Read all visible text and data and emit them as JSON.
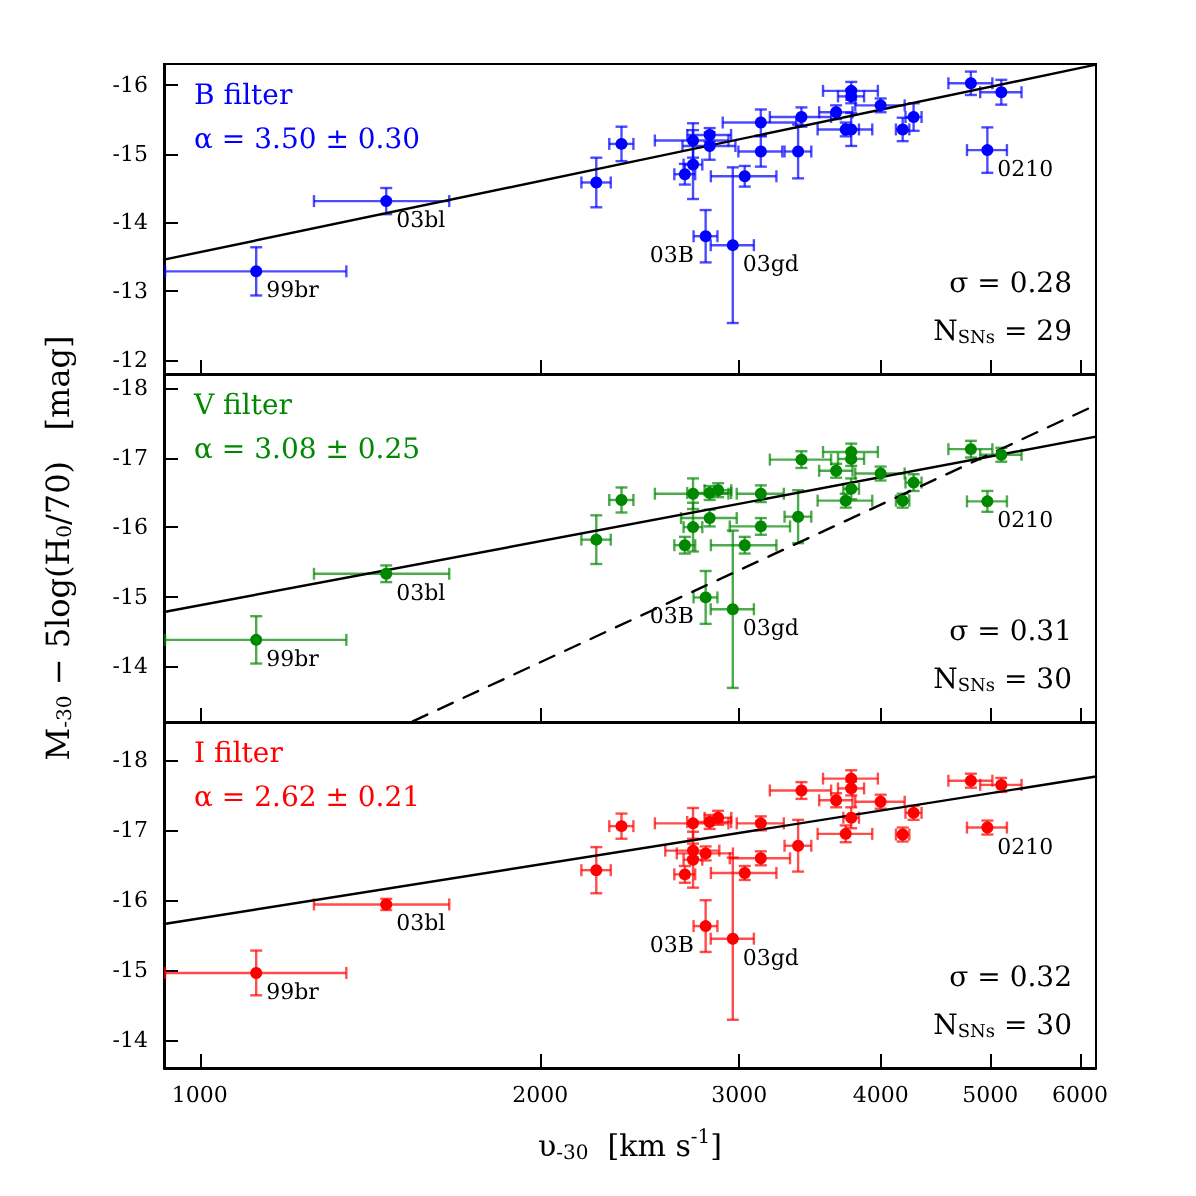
{
  "chart_data": [
    {
      "type": "scatter",
      "title": "B filter",
      "subtitle": "α = 3.50 ± 0.30",
      "log": "x",
      "tick_labels": "y",
      "xlim": [
        930,
        6200
      ],
      "ylim": [
        -11.8,
        -16.3
      ],
      "xticks": [
        1000,
        2000,
        3000,
        4000,
        5000,
        6000
      ],
      "yticks": [
        -16,
        -15,
        -14,
        -13,
        -12
      ],
      "annotations": [
        "σ = 0.28",
        "N$_{SNs}$ = 29",
        {
          "text": "99br",
          "x": 1122,
          "y": -13.29
        },
        {
          "text": "03bl",
          "x": 1462,
          "y": -14.31
        },
        {
          "text": "03B",
          "x": 2801,
          "y": -13.8
        },
        {
          "text": "03gd",
          "x": 2960,
          "y": -13.67
        },
        {
          "text": "0210",
          "x": 4970,
          "y": -15.05
        }
      ],
      "series": [
        {
          "color": "#0000ff",
          "marker": "circle",
          "x": [
            1122,
            1462,
            2242,
            2360,
            2685,
            2730,
            2730,
            2824,
            2824,
            2801,
            2960,
            3033,
            3134,
            3134,
            3381,
            3404,
            3653,
            3767,
            3767,
            3725,
            3767,
            3999,
            4183,
            4277,
            4806,
            5113,
            4970
          ],
          "values": [
            -13.29,
            -14.31,
            -14.58,
            -15.14,
            -14.7,
            -14.84,
            -15.19,
            -15.11,
            -15.27,
            -13.8,
            -13.67,
            -14.67,
            -15.45,
            -15.03,
            -15.03,
            -15.53,
            -15.6,
            -15.91,
            -15.83,
            -15.35,
            -15.35,
            -15.7,
            -15.35,
            -15.53,
            -16.02,
            -15.89,
            -15.05
          ],
          "errors": [
            0.35,
            0.19,
            0.36,
            0.25,
            0.15,
            0.5,
            0.25,
            0.2,
            0.1,
            0.38,
            1.13,
            0.15,
            0.19,
            0.22,
            0.39,
            0.14,
            0.1,
            0.13,
            0.1,
            0.1,
            0.24,
            0.1,
            0.17,
            0.2,
            0.17,
            0.18,
            0.33
          ],
          "xerrors": [
            [
              932,
              1348
            ],
            200,
            67,
            58,
            57,
            52,
            204,
            152,
            126,
            68,
            130,
            202,
            234,
            140,
            92,
            212,
            124,
            210,
            100,
            207,
            60,
            201,
            57,
            70,
            215,
            215,
            202
          ]
        },
        {
          "type": "line",
          "color": "#000000",
          "x": [
            930,
            6200
          ],
          "values": [
            -13.46,
            -16.29
          ]
        }
      ]
    },
    {
      "type": "scatter",
      "title": "V filter",
      "subtitle": "α = 3.08 ± 0.25",
      "ylabel": "M$_{-30}$ − 5log(H$_{0}$/70)   [mag]",
      "log": "x",
      "tick_labels": "y",
      "xlim": [
        930,
        6200
      ],
      "ylim": [
        -13.2,
        -18.2
      ],
      "xticks": [
        1000,
        2000,
        3000,
        4000,
        5000,
        6000
      ],
      "yticks": [
        -18,
        -17,
        -16,
        -15,
        -14
      ],
      "annotations": [
        "σ = 0.31",
        "N$_{SNs}$ = 30",
        {
          "text": "99br",
          "x": 1122,
          "y": -14.38
        },
        {
          "text": "03bl",
          "x": 1462,
          "y": -15.33
        },
        {
          "text": "03B",
          "x": 2801,
          "y": -14.99
        },
        {
          "text": "03gd",
          "x": 2960,
          "y": -14.82
        },
        {
          "text": "0210",
          "x": 4970,
          "y": -16.37
        }
      ],
      "series": [
        {
          "color": "#008800",
          "marker": "circle",
          "x": [
            1122,
            1462,
            2242,
            2360,
            2685,
            2730,
            2730,
            2824,
            2873,
            2824,
            2801,
            2960,
            3033,
            3134,
            3134,
            3381,
            3404,
            3653,
            3767,
            3767,
            3725,
            3767,
            3999,
            4183,
            4277,
            4806,
            5113,
            4970
          ],
          "values": [
            -14.38,
            -15.33,
            -15.82,
            -16.39,
            -15.74,
            -16.0,
            -16.48,
            -16.49,
            -16.53,
            -16.13,
            -14.99,
            -14.82,
            -15.74,
            -16.48,
            -16.01,
            -16.15,
            -16.97,
            -16.81,
            -17.08,
            -16.98,
            -16.38,
            -16.55,
            -16.77,
            -16.38,
            -16.64,
            -17.12,
            -17.04,
            -16.37
          ],
          "errors": [
            0.34,
            0.12,
            0.35,
            0.18,
            0.12,
            0.35,
            0.22,
            0.1,
            0.1,
            0.12,
            0.38,
            1.13,
            0.12,
            0.12,
            0.12,
            0.38,
            0.12,
            0.1,
            0.12,
            0.1,
            0.1,
            0.15,
            0.1,
            0.1,
            0.12,
            0.12,
            0.1,
            0.15
          ],
          "xerrors": [
            [
              932,
              1348
            ],
            200,
            67,
            58,
            57,
            52,
            204,
            126,
            78,
            160,
            68,
            130,
            202,
            150,
            192,
            92,
            212,
            124,
            210,
            100,
            207,
            60,
            201,
            57,
            70,
            215,
            215,
            202
          ]
        },
        {
          "type": "line",
          "color": "#000000",
          "x": [
            930,
            6200
          ],
          "values": [
            -14.78,
            -17.3
          ]
        },
        {
          "type": "line",
          "color": "#000000",
          "line_style": "dashed",
          "x": [
            1543,
            6116
          ],
          "values": [
            -13.21,
            -17.71
          ]
        }
      ]
    },
    {
      "type": "scatter",
      "title": "I filter",
      "subtitle": "α = 2.62 ± 0.21",
      "xlabel": "υ$_{-30}$  [km s$^{-1}$]",
      "log": "x",
      "xlim": [
        930,
        6200
      ],
      "ylim": [
        -13.6,
        -18.55
      ],
      "xticks": [
        1000,
        2000,
        3000,
        4000,
        5000,
        6000
      ],
      "yticks": [
        -18,
        -17,
        -16,
        -15,
        -14
      ],
      "annotations": [
        "σ = 0.32",
        "N$_{SNs}$ = 30",
        {
          "text": "99br",
          "x": 1122,
          "y": -14.96
        },
        {
          "text": "03bl",
          "x": 1462,
          "y": -15.94
        },
        {
          "text": "03B",
          "x": 2801,
          "y": -15.63
        },
        {
          "text": "03gd",
          "x": 2960,
          "y": -15.45
        },
        {
          "text": "0210",
          "x": 4970,
          "y": -17.04
        }
      ],
      "series": [
        {
          "color": "#ff0000",
          "marker": "circle",
          "x": [
            1122,
            1462,
            2242,
            2360,
            2685,
            2730,
            2730,
            2730,
            2801,
            2824,
            2873,
            2801,
            2960,
            3033,
            3134,
            3134,
            3381,
            3404,
            3653,
            3767,
            3767,
            3767,
            3725,
            3999,
            4183,
            4277,
            4806,
            5113,
            4970
          ],
          "values": [
            -14.96,
            -15.94,
            -16.43,
            -17.06,
            -16.37,
            -16.58,
            -17.1,
            -16.71,
            -16.67,
            -17.12,
            -17.18,
            -15.63,
            -15.45,
            -16.39,
            -17.1,
            -16.6,
            -16.78,
            -17.57,
            -17.43,
            -17.74,
            -17.6,
            -17.18,
            -16.95,
            -17.41,
            -16.94,
            -17.25,
            -17.71,
            -17.65,
            -17.04
          ],
          "errors": [
            0.32,
            0.08,
            0.33,
            0.18,
            0.12,
            0.4,
            0.22,
            0.1,
            0.1,
            0.1,
            0.1,
            0.37,
            1.16,
            0.1,
            0.1,
            0.1,
            0.37,
            0.12,
            0.1,
            0.12,
            0.1,
            0.15,
            0.12,
            0.1,
            0.1,
            0.1,
            0.1,
            0.1,
            0.1
          ],
          "xerrors": [
            [
              932,
              1348
            ],
            200,
            67,
            58,
            57,
            52,
            204,
            150,
            160,
            126,
            78,
            68,
            130,
            202,
            150,
            192,
            92,
            212,
            124,
            210,
            100,
            60,
            207,
            201,
            57,
            70,
            215,
            215,
            202
          ]
        },
        {
          "type": "line",
          "color": "#000000",
          "x": [
            930,
            6200
          ],
          "values": [
            -15.66,
            -17.77
          ]
        }
      ]
    }
  ]
}
